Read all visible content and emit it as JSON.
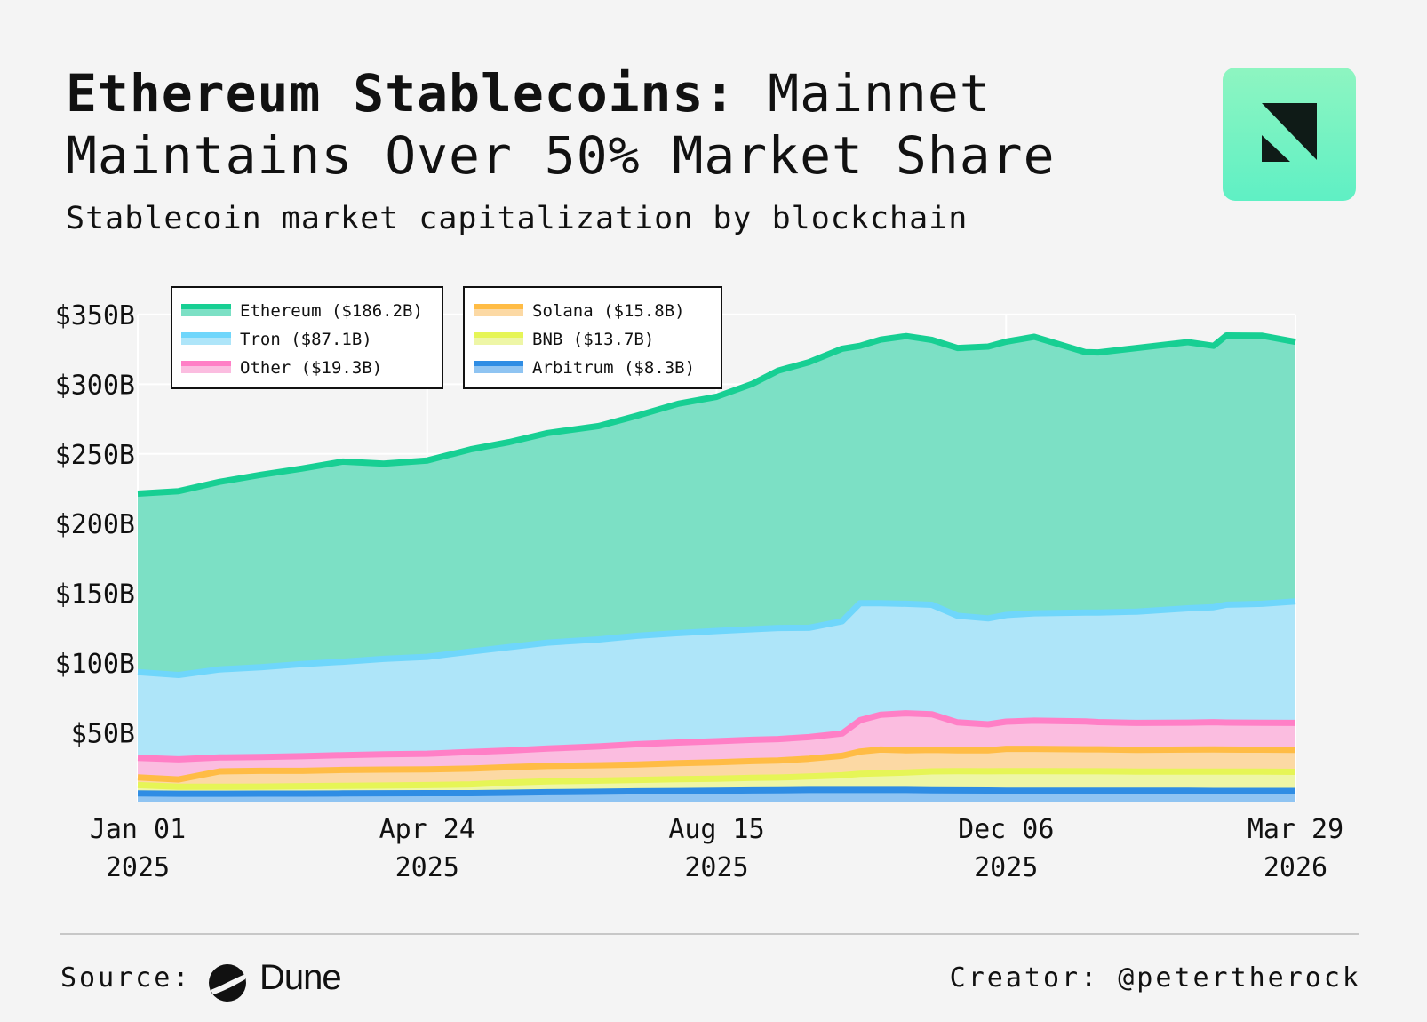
{
  "header": {
    "title_bold": "Ethereum Stablecoins:",
    "title_rest": "Mainnet Maintains Over 50% Market Share",
    "subtitle": "Stablecoin market capitalization by blockchain"
  },
  "footer": {
    "source_label": "Source:",
    "source_name": "Dune",
    "creator": "Creator: @petertherock"
  },
  "chart_data": {
    "type": "area",
    "stacked": true,
    "title": "Stablecoin market capitalization by blockchain",
    "xlabel": "",
    "ylabel": "",
    "ylim": [
      0,
      350
    ],
    "y_unit": "B USD",
    "grid": true,
    "legend_position": "top-left",
    "y_ticks": [
      50,
      100,
      150,
      200,
      250,
      300,
      350
    ],
    "y_tick_labels": [
      "$50B",
      "$100B",
      "$150B",
      "$200B",
      "$250B",
      "$300B",
      "$350B"
    ],
    "x_ticks": [
      0,
      113,
      226,
      339,
      452
    ],
    "x_tick_labels": [
      [
        "Jan 01",
        "2025"
      ],
      [
        "Apr 24",
        "2025"
      ],
      [
        "Aug 15",
        "2025"
      ],
      [
        "Dec 06",
        "2025"
      ],
      [
        "Mar 29",
        "2026"
      ]
    ],
    "x": [
      0,
      16,
      32,
      48,
      64,
      80,
      96,
      113,
      130,
      145,
      160,
      180,
      195,
      211,
      226,
      240,
      250,
      262,
      275,
      282,
      290,
      300,
      310,
      320,
      332,
      339,
      350,
      370,
      375,
      390,
      410,
      420,
      425,
      439,
      452
    ],
    "series_order_bottom_to_top": [
      "Arbitrum",
      "BNB",
      "Solana",
      "Other",
      "Tron",
      "Ethereum"
    ],
    "series": [
      {
        "name": "Arbitrum",
        "legend_label": "Arbitrum ($8.3B)",
        "color": "#2f8de4",
        "fill": "#8fc4f2",
        "values": [
          6.5,
          6.3,
          6.3,
          6.4,
          6.4,
          6.5,
          6.6,
          6.7,
          6.7,
          7.0,
          7.4,
          7.7,
          8.0,
          8.2,
          8.5,
          8.7,
          8.8,
          9.0,
          9.0,
          9.0,
          9.0,
          9.0,
          8.8,
          8.7,
          8.6,
          8.5,
          8.5,
          8.4,
          8.4,
          8.4,
          8.4,
          8.3,
          8.3,
          8.3,
          8.3
        ]
      },
      {
        "name": "BNB",
        "legend_label": "BNB ($13.7B)",
        "color": "#e6f556",
        "fill": "#eef6a6",
        "values": [
          6.0,
          5.0,
          5.0,
          5.0,
          5.3,
          5.5,
          5.6,
          5.8,
          6.3,
          7.3,
          7.8,
          8.0,
          8.2,
          8.5,
          8.6,
          9.0,
          9.1,
          9.6,
          10.5,
          11.5,
          12.0,
          12.5,
          13.5,
          13.8,
          13.8,
          14.0,
          14.0,
          14.0,
          14.0,
          13.8,
          13.8,
          13.8,
          13.8,
          13.8,
          13.7
        ]
      },
      {
        "name": "Solana",
        "legend_label": "Solana ($15.8B)",
        "color": "#ffbc45",
        "fill": "#fcd9a4",
        "values": [
          5.5,
          5.2,
          11.0,
          11.3,
          11.0,
          11.3,
          11.4,
          11.2,
          11.3,
          11.0,
          11.0,
          11.0,
          11.1,
          11.5,
          11.8,
          12.0,
          12.2,
          12.8,
          14.0,
          16.0,
          17.0,
          16.0,
          15.5,
          15.0,
          15.0,
          16.0,
          16.0,
          15.8,
          15.8,
          15.6,
          15.8,
          16.0,
          15.9,
          15.8,
          15.8
        ]
      },
      {
        "name": "Other",
        "legend_label": "Other ($19.3B)",
        "color": "#ff7fc6",
        "fill": "#fbbde0",
        "values": [
          14.0,
          14.5,
          10.0,
          10.0,
          10.5,
          10.7,
          11.0,
          11.3,
          12.0,
          12.0,
          12.5,
          13.5,
          14.5,
          14.8,
          15.1,
          15.3,
          15.4,
          15.5,
          16.0,
          22.5,
          25.0,
          26.5,
          25.5,
          20.0,
          18.7,
          19.5,
          20.2,
          20.0,
          19.5,
          19.3,
          19.3,
          19.5,
          19.4,
          19.3,
          19.3
        ]
      },
      {
        "name": "Tron",
        "legend_label": "Tron ($87.1B)",
        "color": "#6fd6fb",
        "fill": "#aee5f9",
        "values": [
          61.5,
          60.5,
          63.2,
          64.3,
          66.1,
          67.0,
          68.4,
          69.5,
          72.0,
          74.2,
          76.0,
          76.8,
          77.8,
          78.5,
          79.0,
          79.3,
          79.7,
          78.4,
          80.5,
          84.0,
          80.0,
          78.5,
          78.5,
          76.5,
          76.0,
          76.5,
          77.0,
          78.0,
          78.5,
          79.8,
          82.0,
          82.5,
          84.5,
          85.3,
          87.1
        ]
      },
      {
        "name": "Ethereum",
        "legend_label": "Ethereum ($186.2B)",
        "color": "#17cf93",
        "fill": "#7ce0c5",
        "values": [
          128.0,
          131.8,
          134.5,
          138.0,
          140.2,
          143.5,
          140.0,
          140.8,
          145.0,
          147.0,
          150.3,
          153.0,
          157.9,
          164.5,
          168.0,
          176.0,
          184.5,
          190.5,
          195.5,
          184.5,
          189.0,
          192.0,
          190.0,
          192.0,
          194.9,
          196.0,
          198.3,
          186.8,
          186.6,
          189.1,
          190.9,
          187.4,
          193.1,
          192.3,
          186.2
        ]
      }
    ]
  }
}
